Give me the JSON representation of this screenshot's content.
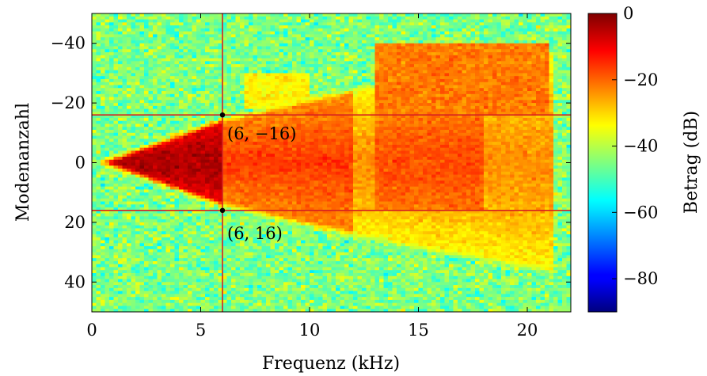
{
  "chart_data": {
    "type": "heatmap",
    "xlabel": "Frequenz (kHz)",
    "ylabel": "Modenanzahl",
    "xlim": [
      0,
      22
    ],
    "ylim": [
      -50,
      50
    ],
    "y_axis_inverted": true,
    "xticks": [
      0,
      5,
      10,
      15,
      20
    ],
    "yticks": [
      -40,
      -20,
      0,
      20,
      40
    ],
    "colorbar": {
      "label": "Betrag (dB)",
      "range": [
        -90,
        0
      ],
      "ticks": [
        0,
        -20,
        -40,
        -60,
        -80
      ],
      "colormap": "jet"
    },
    "description_regions": [
      {
        "region": "noise floor",
        "level_db": -45
      },
      {
        "region": "low-order wedge 0-6 kHz",
        "level_db": -5
      },
      {
        "region": "mid band 6-12 kHz",
        "level_db": -18
      },
      {
        "region": "upper band 12-21 kHz",
        "level_db": -25
      }
    ],
    "reference_lines": {
      "vertical_x": 6,
      "horizontal_y": [
        -16,
        16
      ]
    },
    "annotations": [
      {
        "x": 6,
        "y": -16,
        "label": "(6, −16)"
      },
      {
        "x": 6,
        "y": 16,
        "label": "(6, 16)"
      }
    ],
    "line_color": "#d62020"
  }
}
